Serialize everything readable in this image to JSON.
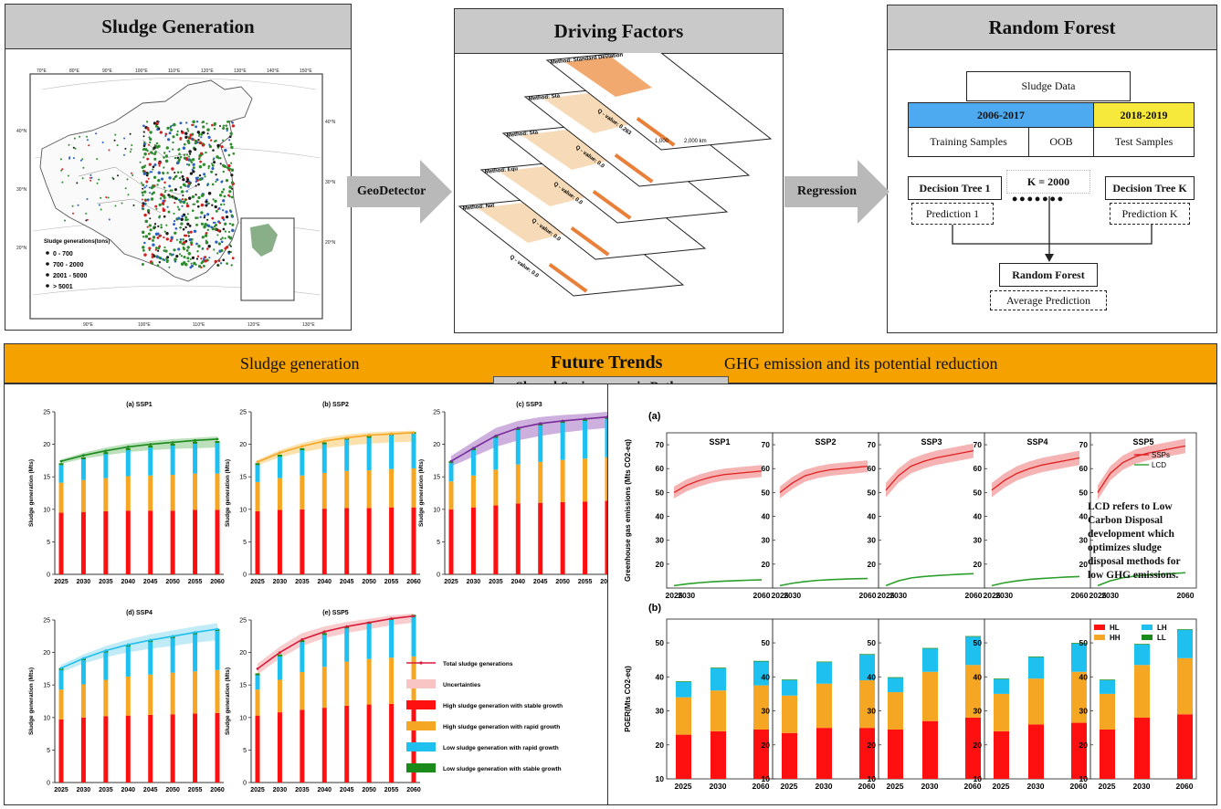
{
  "top_panels": {
    "sludge_generation": {
      "title": "Sludge Generation",
      "map_legend_title": "Sludge generations(tons)",
      "map_legend_items": [
        "0 - 700",
        "700 - 2000",
        "2001 - 5000",
        "> 5001"
      ],
      "map_top_lon_labels": [
        "70°E",
        "80°E",
        "90°E",
        "100°E",
        "110°E",
        "120°E",
        "130°E",
        "140°E",
        "150°E"
      ],
      "map_bottom_lon_labels": [
        "90°E",
        "100°E",
        "110°E",
        "120°E",
        "130°E"
      ],
      "map_left_lat_labels": [
        "40°N",
        "30°N",
        "20°N"
      ],
      "map_right_lat_labels": [
        "40°N",
        "30°N",
        "20°N"
      ]
    },
    "driving_factors": {
      "title": "Driving Factors",
      "layer_methods": [
        "Method: Standard Deviation",
        "Method: Sta",
        "Method: Sta",
        "Method: Equ",
        "Method: Nat"
      ],
      "layer_q_values": [
        "Q - value: 0.263",
        "Q - value: 0.0",
        "Q - value: 0.0",
        "Q - value: 0.0",
        "Q - value: 0.0"
      ],
      "scale_labels": [
        "1,000",
        "2,000 km"
      ]
    },
    "random_forest": {
      "title": "Random Forest",
      "sludge_data": "Sludge Data",
      "period_train": "2006-2017",
      "period_test": "2018-2019",
      "training_samples": "Training Samples",
      "oob": "OOB",
      "test_samples": "Test Samples",
      "tree1": "Decision Tree 1",
      "treek": "Decision Tree K",
      "k_label": "K = 2000",
      "pred1": "Prediction 1",
      "predk": "Prediction K",
      "rf": "Random Forest",
      "avg": "Average Prediction",
      "colors": {
        "train": "#4da9f0",
        "test": "#f7e83c"
      }
    }
  },
  "arrows": {
    "geodetector": "GeoDetector",
    "regression": "Regression"
  },
  "future_trends": {
    "left_label": "Sludge generation",
    "title": "Future Trends",
    "right_label": "GHG emission and its potential reduction",
    "tab": "Shared Socioeconomic Pathways"
  },
  "chart_data": [
    {
      "type": "bar",
      "panel": "sludge-generation",
      "ylabel": "Sludge generation (Mts)",
      "categories": [
        "2025",
        "2030",
        "2035",
        "2040",
        "2045",
        "2050",
        "2055",
        "2060"
      ],
      "ylim": [
        0,
        25
      ],
      "yticks": [
        0,
        5,
        10,
        15,
        20,
        25
      ],
      "subplots": [
        {
          "title": "(a) SSP1",
          "hs": [
            9.5,
            9.6,
            9.7,
            9.8,
            9.8,
            9.8,
            9.9,
            9.9
          ],
          "hr": [
            4.6,
            4.9,
            5.1,
            5.3,
            5.4,
            5.5,
            5.6,
            5.6
          ],
          "lr": [
            2.7,
            3.2,
            3.7,
            4.0,
            4.3,
            4.5,
            4.6,
            4.7
          ],
          "ls": [
            0.3,
            0.3,
            0.3,
            0.3,
            0.3,
            0.3,
            0.3,
            0.3
          ],
          "total": [
            17.4,
            18.3,
            19.0,
            19.6,
            20.0,
            20.3,
            20.6,
            20.8
          ],
          "upper": [
            17.7,
            18.7,
            19.5,
            20.1,
            20.5,
            20.8,
            21.0,
            21.2
          ],
          "lower": [
            17.0,
            17.8,
            18.3,
            18.8,
            19.1,
            19.3,
            19.4,
            19.5
          ]
        },
        {
          "title": "(b) SSP2",
          "hs": [
            9.7,
            9.9,
            10.0,
            10.1,
            10.2,
            10.2,
            10.3,
            10.3
          ],
          "hr": [
            4.5,
            4.9,
            5.2,
            5.5,
            5.7,
            5.8,
            5.9,
            6.0
          ],
          "lr": [
            2.6,
            3.3,
            3.9,
            4.4,
            4.8,
            5.0,
            5.2,
            5.3
          ],
          "ls": [
            0.3,
            0.3,
            0.3,
            0.3,
            0.3,
            0.3,
            0.3,
            0.3
          ],
          "total": [
            17.3,
            18.7,
            19.7,
            20.5,
            21.0,
            21.4,
            21.6,
            21.8
          ],
          "upper": [
            17.6,
            19.1,
            20.2,
            21.0,
            21.5,
            21.8,
            22.0,
            22.1
          ],
          "lower": [
            16.8,
            18.0,
            18.8,
            19.4,
            19.8,
            20.1,
            20.3,
            20.4
          ]
        },
        {
          "title": "(c) SSP3",
          "hs": [
            10.0,
            10.3,
            10.6,
            10.9,
            11.0,
            11.1,
            11.2,
            11.3
          ],
          "hr": [
            4.3,
            4.9,
            5.5,
            6.0,
            6.3,
            6.5,
            6.6,
            6.7
          ],
          "lr": [
            2.8,
            3.9,
            4.9,
            5.3,
            5.6,
            5.7,
            5.8,
            5.9
          ],
          "ls": [
            0.3,
            0.3,
            0.3,
            0.3,
            0.3,
            0.3,
            0.3,
            0.3
          ],
          "total": [
            17.4,
            19.4,
            21.3,
            22.5,
            23.2,
            23.6,
            23.9,
            24.2
          ],
          "upper": [
            18.2,
            20.4,
            22.5,
            23.6,
            24.2,
            24.5,
            24.7,
            25.0
          ],
          "lower": [
            16.6,
            18.1,
            19.6,
            20.6,
            21.3,
            21.8,
            22.2,
            22.5
          ]
        },
        {
          "title": "(d) SSP4",
          "hs": [
            9.7,
            10.0,
            10.2,
            10.3,
            10.4,
            10.5,
            10.6,
            10.7
          ],
          "hr": [
            4.6,
            5.1,
            5.6,
            6.0,
            6.2,
            6.4,
            6.5,
            6.6
          ],
          "lr": [
            3.0,
            3.7,
            4.2,
            4.6,
            5.0,
            5.3,
            5.7,
            6.0
          ],
          "ls": [
            0.3,
            0.3,
            0.3,
            0.3,
            0.3,
            0.3,
            0.3,
            0.3
          ],
          "total": [
            17.6,
            19.1,
            20.3,
            21.2,
            21.9,
            22.5,
            23.1,
            23.6
          ],
          "upper": [
            18.1,
            19.7,
            21.0,
            22.0,
            22.8,
            23.4,
            24.0,
            24.5
          ],
          "lower": [
            17.0,
            18.3,
            19.3,
            20.0,
            20.6,
            21.0,
            21.5,
            21.9
          ]
        },
        {
          "title": "(e) SSP5",
          "hs": [
            10.3,
            10.8,
            11.2,
            11.5,
            11.8,
            12.0,
            12.1,
            12.2
          ],
          "hr": [
            4.0,
            5.0,
            5.8,
            6.3,
            6.8,
            7.0,
            7.1,
            7.2
          ],
          "lr": [
            2.2,
            3.6,
            4.6,
            4.9,
            5.1,
            5.4,
            5.8,
            6.1
          ],
          "ls": [
            0.3,
            0.3,
            0.3,
            0.3,
            0.3,
            0.3,
            0.3,
            0.3
          ],
          "total": [
            17.5,
            20.0,
            22.0,
            23.2,
            24.0,
            24.6,
            25.2,
            25.6
          ],
          "upper": [
            18.3,
            20.9,
            23.0,
            24.0,
            24.7,
            25.2,
            25.7,
            26.0
          ],
          "lower": [
            16.6,
            19.1,
            21.0,
            22.2,
            23.0,
            23.6,
            24.2,
            24.6
          ]
        }
      ],
      "legend": [
        "Total sludge generations",
        "Uncertainties",
        "High sludge generation with stable growth",
        "High sludge generation with rapid growth",
        "Low sludge generation with rapid growth",
        "Low sludge generation with stable growth"
      ],
      "colors": {
        "hs": "#ff1010",
        "hr": "#f5a623",
        "lr": "#1ec0f0",
        "ls": "#1a8a1a",
        "total": "#d81b3a"
      }
    },
    {
      "type": "line",
      "label": "(a)",
      "ylabel": "Greenhouse gas emissions (Mts CO2-eq)",
      "x": [
        2025,
        2030,
        2035,
        2040,
        2045,
        2050,
        2055,
        2060
      ],
      "x_tick_labels": [
        "2025",
        "2030",
        "2060"
      ],
      "ylim": [
        10,
        75
      ],
      "yticks": [
        10,
        20,
        30,
        40,
        50,
        60,
        70
      ],
      "series_names": [
        "SSPs",
        "LCD"
      ],
      "subplots": [
        {
          "title": "SSP1",
          "ssps": [
            50,
            53,
            55,
            56.5,
            57.5,
            58,
            58.5,
            59
          ],
          "band": 2.5,
          "lcd": [
            11,
            11.7,
            12.2,
            12.6,
            12.9,
            13.1,
            13.3,
            13.4
          ]
        },
        {
          "title": "SSP2",
          "ssps": [
            50,
            54,
            57,
            58.5,
            59.5,
            60,
            60.5,
            61
          ],
          "band": 2.5,
          "lcd": [
            11,
            12,
            12.7,
            13.2,
            13.5,
            13.7,
            13.9,
            14.0
          ]
        },
        {
          "title": "SSP3",
          "ssps": [
            51,
            57,
            61,
            63,
            64.5,
            65.5,
            66.5,
            67.5
          ],
          "band": 3,
          "lcd": [
            11,
            13,
            14.2,
            14.8,
            15.2,
            15.5,
            15.8,
            16.0
          ]
        },
        {
          "title": "SSP4",
          "ssps": [
            51,
            55,
            58,
            60,
            61.5,
            62.5,
            63.5,
            64.5
          ],
          "band": 3,
          "lcd": [
            11,
            12.2,
            13,
            13.6,
            14,
            14.3,
            14.6,
            14.8
          ]
        },
        {
          "title": "SSP5",
          "ssps": [
            50,
            58,
            62.5,
            65,
            66.5,
            67.5,
            68.5,
            69.5
          ],
          "band": 3,
          "lcd": [
            11,
            13,
            14.3,
            15,
            15.5,
            15.8,
            16.1,
            16.4
          ]
        }
      ],
      "note": "LCD refers to Low Carbon Disposal development which optimizes sludge disposal methods for low GHG emissions.",
      "colors": {
        "ssps": "#e02020",
        "ssps_band": "#f4a0a0",
        "lcd": "#2aa02a"
      }
    },
    {
      "type": "bar",
      "label": "(b)",
      "ylabel": "PGER(Mts CO2-eq)",
      "categories": [
        "2025",
        "2030",
        "2060"
      ],
      "ylim": [
        10,
        57
      ],
      "yticks": [
        10,
        20,
        30,
        40,
        50
      ],
      "series_names": [
        "HL",
        "LH",
        "HH",
        "LL"
      ],
      "subplots": [
        {
          "hl": [
            23,
            24,
            24.5
          ],
          "hh": [
            11,
            12,
            13
          ],
          "lh": [
            4.5,
            6.5,
            7
          ],
          "ll": [
            0.2,
            0.2,
            0.2
          ]
        },
        {
          "hl": [
            23.5,
            25,
            25
          ],
          "hh": [
            11,
            13,
            14
          ],
          "lh": [
            4.5,
            6.3,
            7.5
          ],
          "ll": [
            0.2,
            0.2,
            0.2
          ]
        },
        {
          "hl": [
            24.5,
            27,
            28
          ],
          "hh": [
            11,
            14.5,
            15.5
          ],
          "lh": [
            4.2,
            6.8,
            8.3
          ],
          "ll": [
            0.2,
            0.2,
            0.2
          ]
        },
        {
          "hl": [
            24,
            26,
            26.5
          ],
          "hh": [
            11,
            13.5,
            15
          ],
          "lh": [
            4.3,
            6.3,
            8.3
          ],
          "ll": [
            0.2,
            0.2,
            0.2
          ]
        },
        {
          "hl": [
            24.5,
            28,
            29
          ],
          "hh": [
            10.5,
            15.5,
            16.5
          ],
          "lh": [
            4,
            6,
            8.3
          ],
          "ll": [
            0.2,
            0.2,
            0.2
          ]
        }
      ],
      "colors": {
        "hl": "#ff1010",
        "hh": "#f5a623",
        "lh": "#1ec0f0",
        "ll": "#1a8a1a"
      }
    }
  ]
}
